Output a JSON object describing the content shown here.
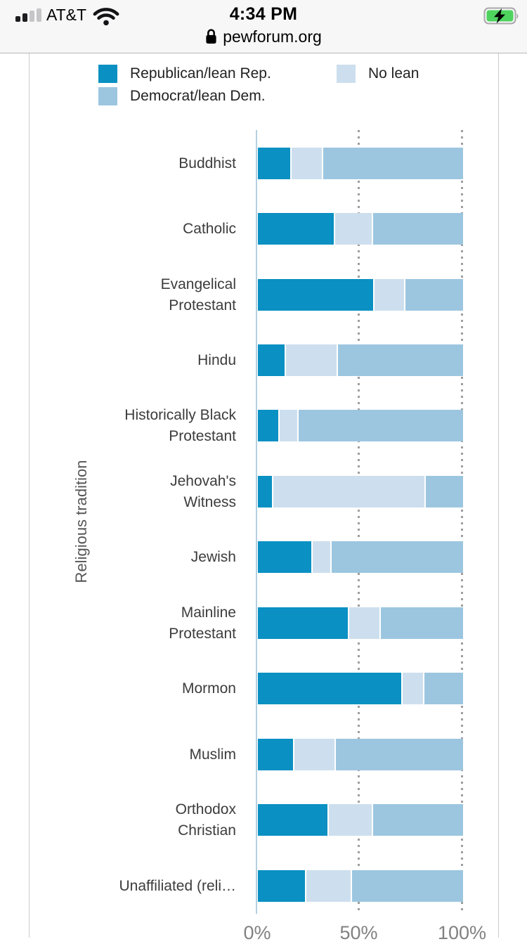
{
  "status_bar": {
    "carrier": "AT&T",
    "time": "4:34 PM",
    "url": "pewforum.org",
    "battery_color": "#4fd35f",
    "signal_bars_filled": 2,
    "signal_bars_total": 4
  },
  "legend": {
    "items": [
      {
        "label": "Republican/lean Rep.",
        "color": "#0a90c2"
      },
      {
        "label": "Democrat/lean Dem.",
        "color": "#9cc6e0"
      },
      {
        "label": "No lean",
        "color": "#cddfee"
      }
    ]
  },
  "chart_data": {
    "type": "bar",
    "orientation": "horizontal",
    "stacked": true,
    "ylabel": "Religious tradition",
    "xlabel": "",
    "xlim": [
      0,
      100
    ],
    "x_ticks": [
      "0%",
      "50%",
      "100%"
    ],
    "grid": "dotted-vertical",
    "legend_position": "top",
    "categories": [
      "Buddhist",
      "Catholic",
      "Evangelical Protestant",
      "Hindu",
      "Historically Black Protestant",
      "Jehovah's Witness",
      "Jewish",
      "Mainline Protestant",
      "Mormon",
      "Muslim",
      "Orthodox Christian",
      "Unaffiliated (reli…"
    ],
    "category_label_lines": [
      [
        "Buddhist"
      ],
      [
        "Catholic"
      ],
      [
        "Evangelical",
        "Protestant"
      ],
      [
        "Hindu"
      ],
      [
        "Historically Black",
        "Protestant"
      ],
      [
        "Jehovah's",
        "Witness"
      ],
      [
        "Jewish"
      ],
      [
        "Mainline",
        "Protestant"
      ],
      [
        "Mormon"
      ],
      [
        "Muslim"
      ],
      [
        "Orthodox",
        "Christian"
      ],
      [
        "Unaffiliated (reli…"
      ]
    ],
    "series": [
      {
        "name": "Republican/lean Rep.",
        "color": "#0a90c2",
        "values": [
          16,
          37,
          56,
          13,
          10,
          7,
          26,
          44,
          70,
          17,
          34,
          23
        ]
      },
      {
        "name": "No lean",
        "color": "#cddfee",
        "values": [
          16,
          19,
          16,
          26,
          10,
          75,
          10,
          16,
          11,
          21,
          22,
          23
        ]
      },
      {
        "name": "Democrat/lean Dem.",
        "color": "#9cc6e0",
        "values": [
          69,
          44,
          28,
          61,
          80,
          18,
          64,
          40,
          19,
          62,
          44,
          54
        ]
      }
    ]
  }
}
